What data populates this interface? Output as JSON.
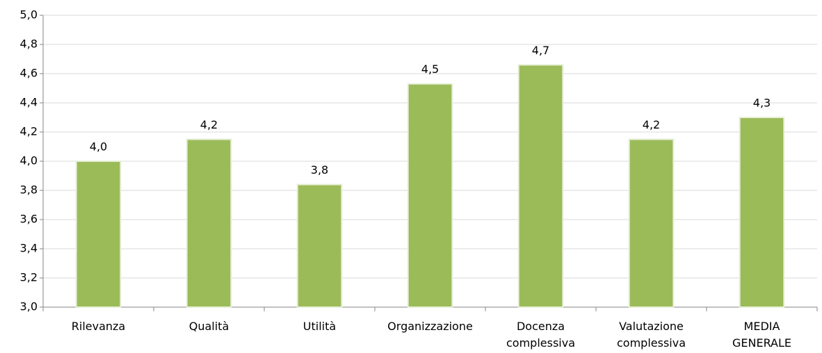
{
  "chart_data": {
    "type": "bar",
    "categories": [
      "Rilevanza",
      "Qualità",
      "Utilità",
      "Organizzazione",
      "Docenza\ncomplessiva",
      "Valutazione\ncomplessiva",
      "MEDIA\nGENERALE"
    ],
    "values": [
      4.0,
      4.15,
      3.84,
      4.53,
      4.66,
      4.15,
      4.3
    ],
    "value_labels": [
      "4,0",
      "4,2",
      "3,8",
      "4,5",
      "4,7",
      "4,2",
      "4,3"
    ],
    "color": "#9bbb59",
    "ylim": [
      3,
      5
    ],
    "yticks": [
      {
        "value": 3,
        "label": "3,0"
      },
      {
        "value": 3.2,
        "label": "3,2"
      },
      {
        "value": 3.4,
        "label": "3,4"
      },
      {
        "value": 3.6,
        "label": "3,6"
      },
      {
        "value": 3.8,
        "label": "3,8"
      },
      {
        "value": 4,
        "label": "4,0"
      },
      {
        "value": 4.2,
        "label": "4,2"
      },
      {
        "value": 4.4,
        "label": "4,4"
      },
      {
        "value": 4.6,
        "label": "4,6"
      },
      {
        "value": 4.8,
        "label": "4,8"
      },
      {
        "value": 5,
        "label": "5,0"
      }
    ],
    "grid": true
  }
}
